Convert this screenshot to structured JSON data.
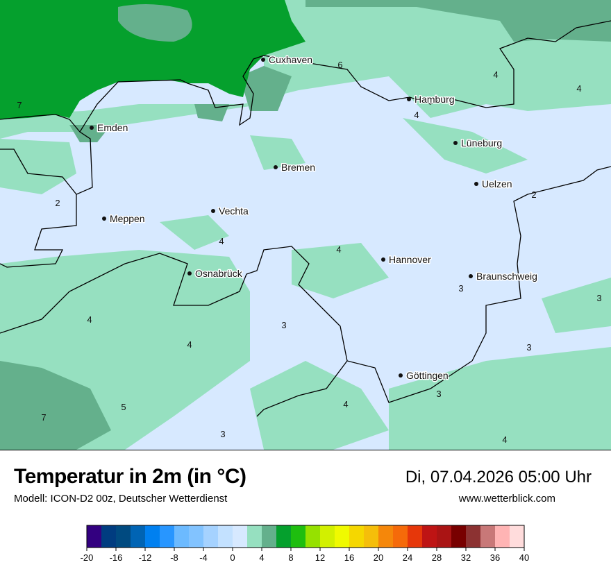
{
  "title": "Temperatur in 2m (in °C)",
  "subtitle": "Modell: ICON-D2 00z, Deutscher Wetterdienst",
  "datetime": "Di, 07.04.2026 05:00 Uhr",
  "website": "www.wetterblick.com",
  "cities": [
    {
      "name": "Cuxhaven"
    },
    {
      "name": "Hamburg"
    },
    {
      "name": "Emden"
    },
    {
      "name": "Lüneburg"
    },
    {
      "name": "Bremen"
    },
    {
      "name": "Uelzen"
    },
    {
      "name": "Vechta"
    },
    {
      "name": "Meppen"
    },
    {
      "name": "Hannover"
    },
    {
      "name": "Osnabrück"
    },
    {
      "name": "Braunschweig"
    },
    {
      "name": "Göttingen"
    }
  ],
  "contour_labels": [
    "7",
    "6",
    "4",
    "4",
    "4",
    "2",
    "2",
    "4",
    "4",
    "3",
    "3",
    "4",
    "3",
    "4",
    "3",
    "3",
    "5",
    "7",
    "4",
    "3",
    "4"
  ],
  "colorbar": {
    "ticks": [
      "-20",
      "-16",
      "-12",
      "-8",
      "-4",
      "0",
      "4",
      "8",
      "12",
      "16",
      "20",
      "24",
      "28",
      "32",
      "36",
      "40"
    ],
    "min": -20,
    "max": 40,
    "step": 2,
    "colors": [
      "#330080",
      "#003c80",
      "#004a80",
      "#0064b4",
      "#0080f0",
      "#2896ff",
      "#6cbaff",
      "#82c3ff",
      "#a5d2ff",
      "#c3e1ff",
      "#d7e9ff",
      "#96e0c0",
      "#64b08c",
      "#05a02d",
      "#1ebe0f",
      "#96e100",
      "#d2f000",
      "#f0fa00",
      "#f5d700",
      "#f5be0a",
      "#f5870a",
      "#f56a0a",
      "#e6370a",
      "#be1414",
      "#aa1414",
      "#780000",
      "#8c3232",
      "#c87878",
      "#ffb4b4",
      "#ffdcdc"
    ]
  }
}
